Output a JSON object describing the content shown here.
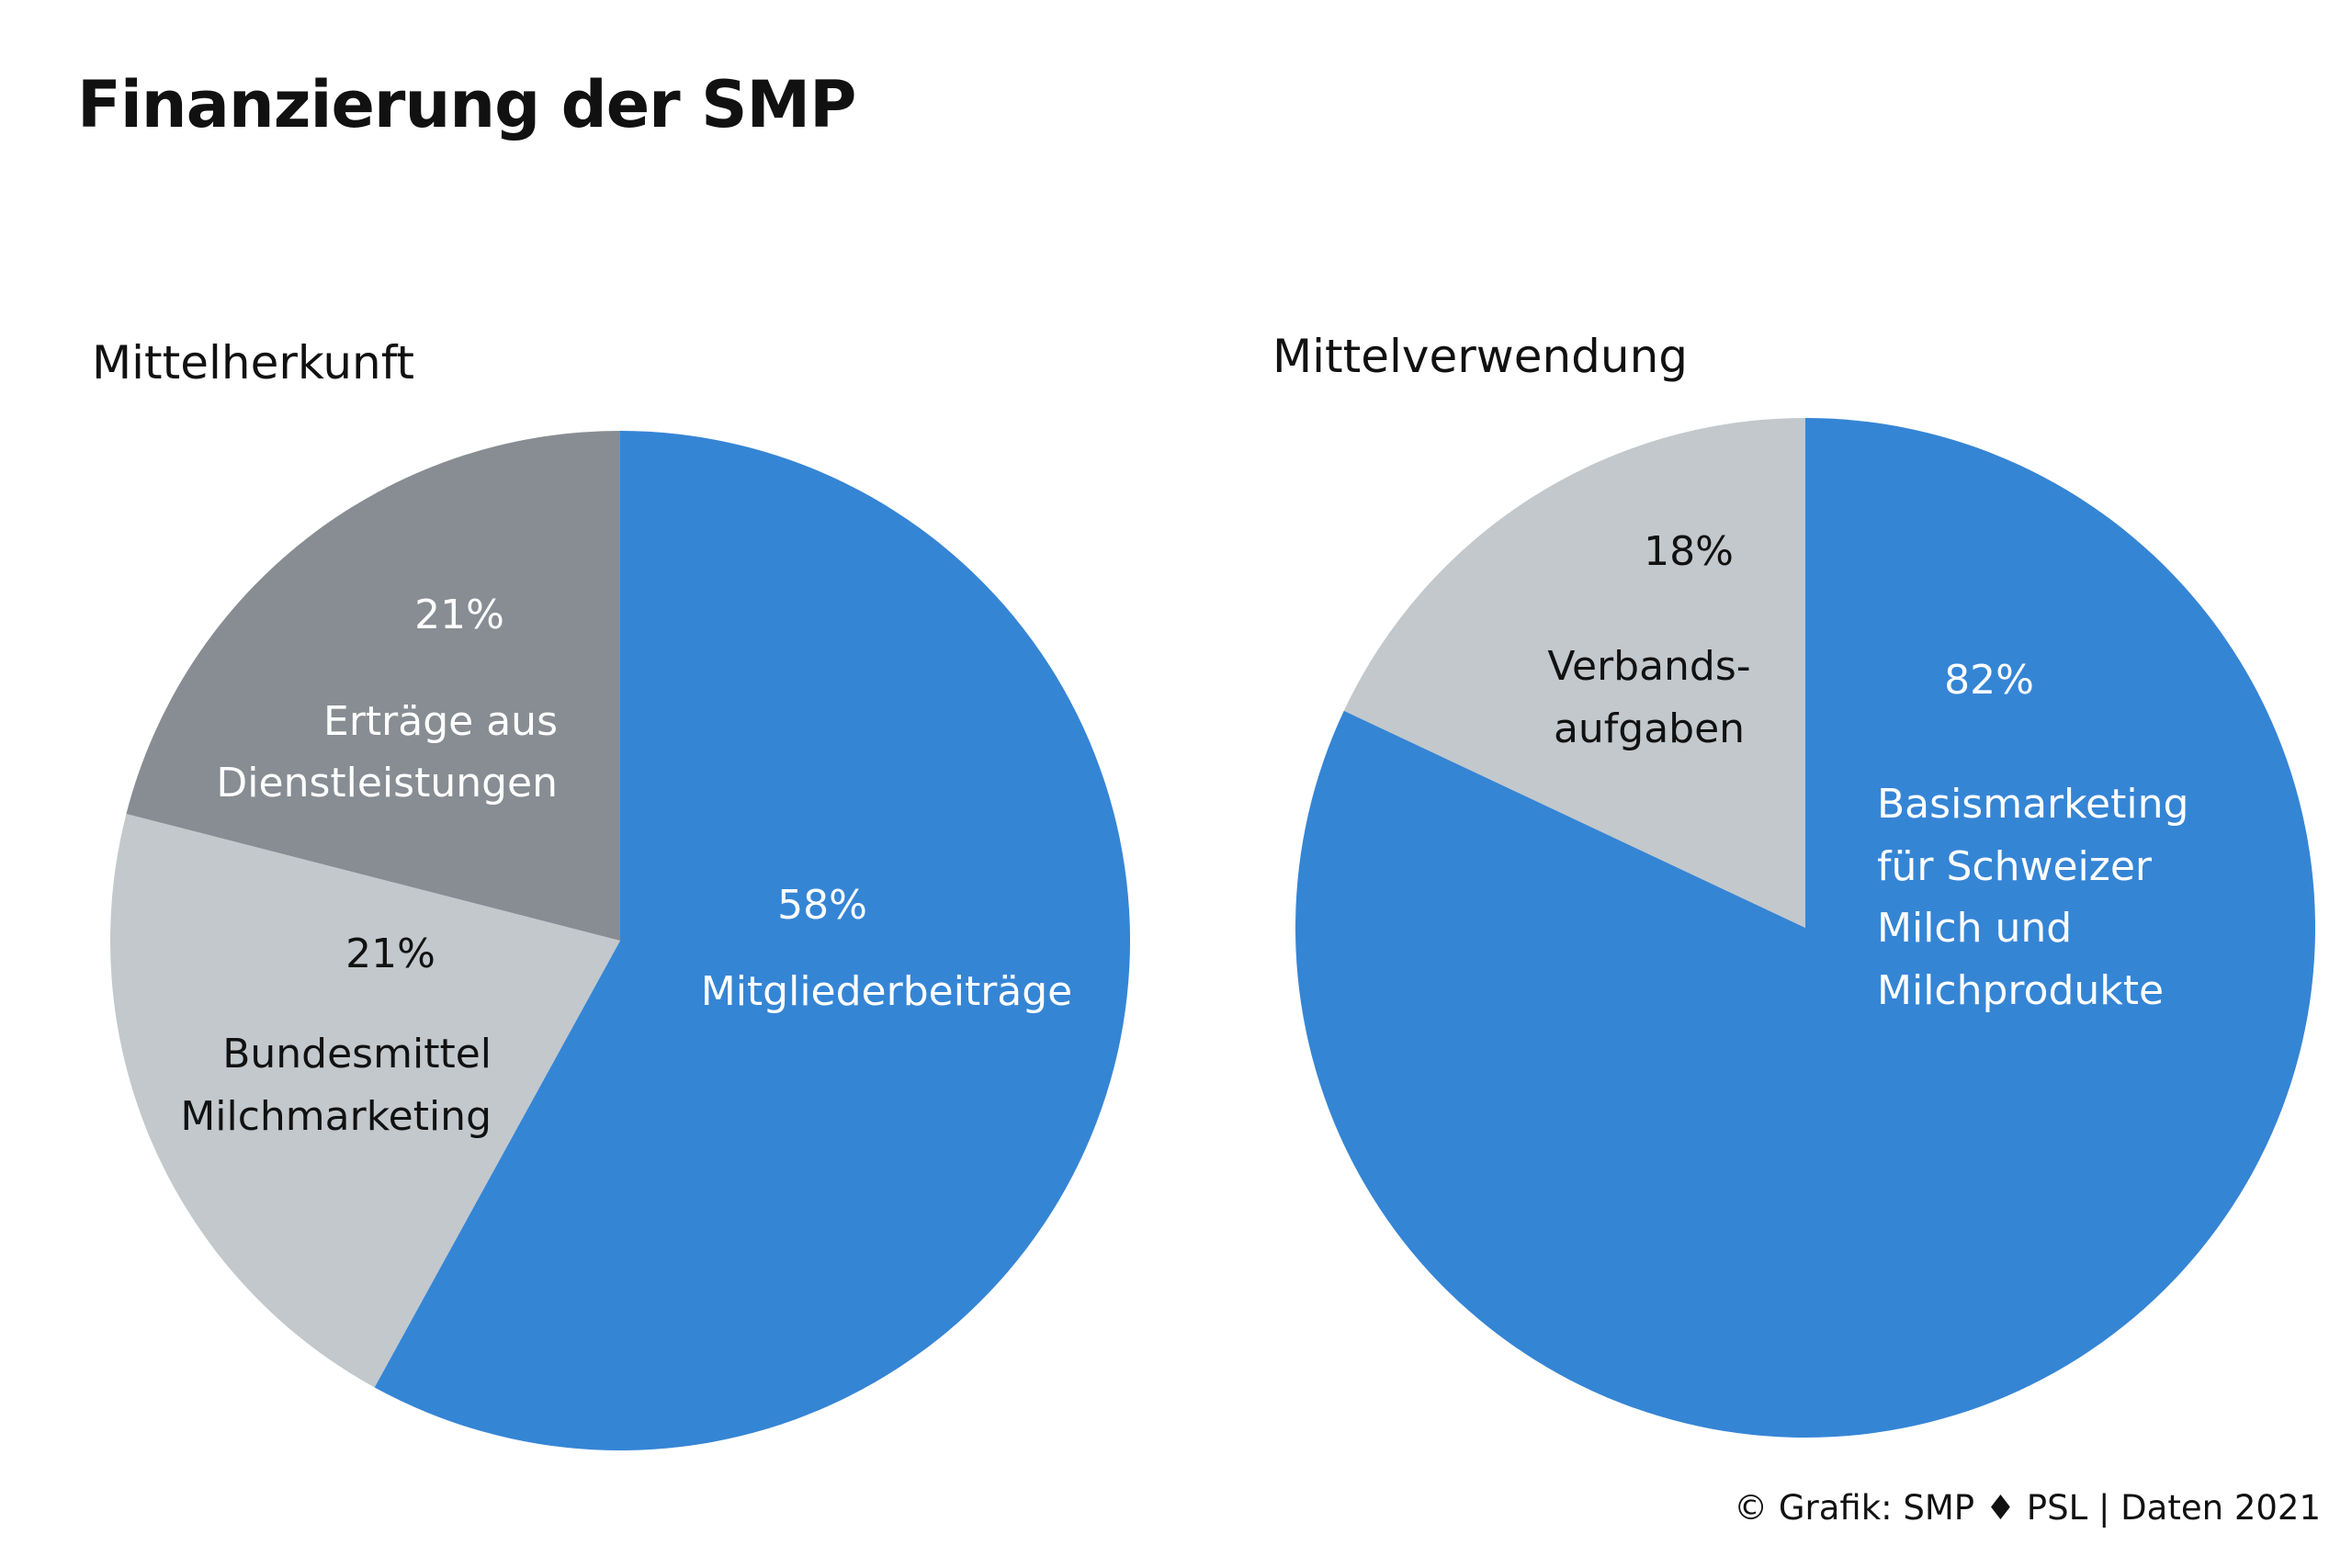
{
  "title": "Finanzierung der SMP",
  "footer": "© Grafik: SMP ♦ PSL | Daten 2021",
  "colors": {
    "blue": "#3585d5",
    "dark_gray": "#878d93",
    "light_gray": "#c2c8cc",
    "text_dark": "#111111",
    "text_light": "#ffffff"
  },
  "chart_data": [
    {
      "type": "pie",
      "title": "Mittelherkunft",
      "start": "12 o'clock",
      "direction": "clockwise",
      "slices": [
        {
          "label": "Mitgliederbeiträge",
          "percent_label": "58%",
          "value": 58,
          "color": "#3585d5",
          "text_color": "#ffffff"
        },
        {
          "label": "Bundesmittel Milchmarketing",
          "label_lines": [
            "Bundesmittel",
            "Milchmarketing"
          ],
          "percent_label": "21%",
          "value": 21,
          "color": "#c2c8cc",
          "text_color": "#111111"
        },
        {
          "label": "Erträge aus Dienstleistungen",
          "label_lines": [
            "Erträge aus",
            "Dienstleistungen"
          ],
          "percent_label": "21%",
          "value": 21,
          "color": "#878d93",
          "text_color": "#ffffff"
        }
      ]
    },
    {
      "type": "pie",
      "title": "Mittelverwendung",
      "start": "12 o'clock",
      "direction": "clockwise",
      "slices": [
        {
          "label": "Basismarketing für Schweizer Milch und Milchprodukte",
          "label_lines": [
            "Basismarketing",
            "für Schweizer",
            "Milch und",
            "Milchprodukte"
          ],
          "percent_label": "82%",
          "value": 82,
          "color": "#3585d5",
          "text_color": "#ffffff"
        },
        {
          "label": "Verbands-aufgaben",
          "label_lines": [
            "Verbands-",
            "aufgaben"
          ],
          "percent_label": "18%",
          "value": 18,
          "color": "#c2c8cc",
          "text_color": "#111111"
        }
      ]
    }
  ]
}
